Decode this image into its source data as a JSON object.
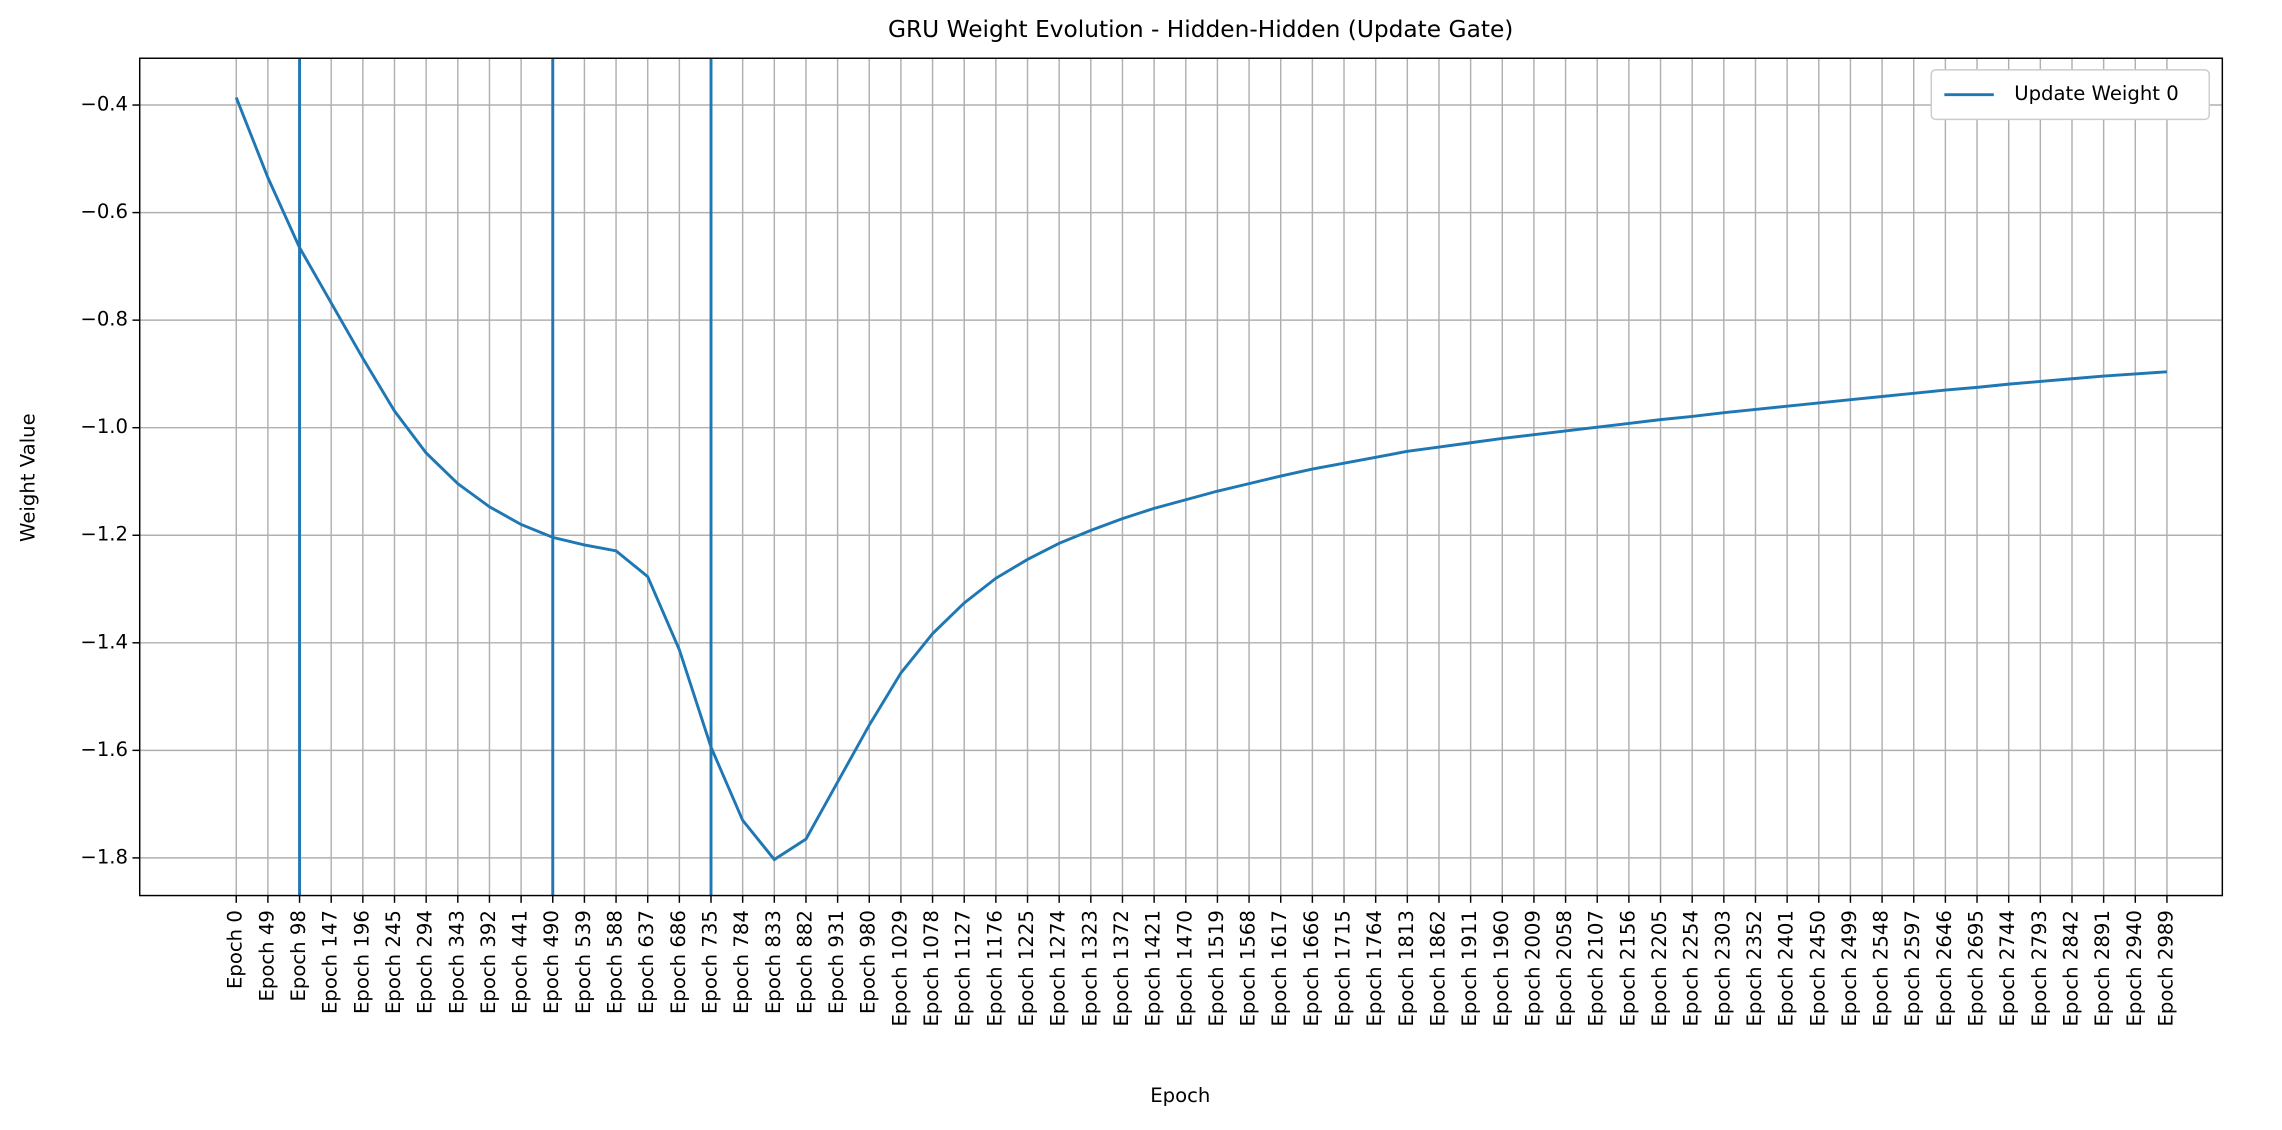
{
  "chart_data": {
    "type": "line",
    "title": "GRU Weight Evolution - Hidden-Hidden (Update Gate)",
    "x_label": "Epoch",
    "y_label": "Weight Value",
    "categories": [
      "Epoch 0",
      "Epoch 49",
      "Epoch 98",
      "Epoch 147",
      "Epoch 196",
      "Epoch 245",
      "Epoch 294",
      "Epoch 343",
      "Epoch 392",
      "Epoch 441",
      "Epoch 490",
      "Epoch 539",
      "Epoch 588",
      "Epoch 637",
      "Epoch 686",
      "Epoch 735",
      "Epoch 784",
      "Epoch 833",
      "Epoch 882",
      "Epoch 931",
      "Epoch 980",
      "Epoch 1029",
      "Epoch 1078",
      "Epoch 1127",
      "Epoch 1176",
      "Epoch 1225",
      "Epoch 1274",
      "Epoch 1323",
      "Epoch 1372",
      "Epoch 1421",
      "Epoch 1470",
      "Epoch 1519",
      "Epoch 1568",
      "Epoch 1617",
      "Epoch 1666",
      "Epoch 1715",
      "Epoch 1764",
      "Epoch 1813",
      "Epoch 1862",
      "Epoch 1911",
      "Epoch 1960",
      "Epoch 2009",
      "Epoch 2058",
      "Epoch 2107",
      "Epoch 2156",
      "Epoch 2205",
      "Epoch 2254",
      "Epoch 2303",
      "Epoch 2352",
      "Epoch 2401",
      "Epoch 2450",
      "Epoch 2499",
      "Epoch 2548",
      "Epoch 2597",
      "Epoch 2646",
      "Epoch 2695",
      "Epoch 2744",
      "Epoch 2793",
      "Epoch 2842",
      "Epoch 2891",
      "Epoch 2940",
      "Epoch 2989"
    ],
    "series": [
      {
        "name": "Update Weight 0",
        "color": "#1f77b4",
        "values": [
          -0.386,
          -0.535,
          -0.665,
          -0.768,
          -0.871,
          -0.969,
          -1.047,
          -1.104,
          -1.147,
          -1.18,
          -1.204,
          -1.218,
          -1.229,
          -1.277,
          -1.413,
          -1.594,
          -1.73,
          -1.803,
          -1.765,
          -1.659,
          -1.553,
          -1.456,
          -1.383,
          -1.326,
          -1.28,
          -1.245,
          -1.215,
          -1.191,
          -1.169,
          -1.15,
          -1.134,
          -1.118,
          -1.104,
          -1.09,
          -1.077,
          -1.066,
          -1.055,
          -1.044,
          -1.036,
          -1.028,
          -1.02,
          -1.013,
          -1.006,
          -0.999,
          -0.992,
          -0.985,
          -0.979,
          -0.972,
          -0.966,
          -0.96,
          -0.954,
          -0.948,
          -0.942,
          -0.936,
          -0.93,
          -0.925,
          -0.919,
          -0.914,
          -0.909,
          -0.904,
          -0.9,
          -0.896
        ]
      }
    ],
    "vlines": [
      2,
      10,
      15
    ],
    "vline_color": "#1f77b4",
    "xlim": [
      -3.05,
      62.75
    ],
    "ylim": [
      -1.87,
      -0.313
    ],
    "yticks": [
      {
        "value": -1.8,
        "label": "−1.8"
      },
      {
        "value": -1.6,
        "label": "−1.6"
      },
      {
        "value": -1.4,
        "label": "−1.4"
      },
      {
        "value": -1.2,
        "label": "−1.2"
      },
      {
        "value": -1.0,
        "label": "−1.0"
      },
      {
        "value": -0.8,
        "label": "−0.8"
      },
      {
        "value": -0.6,
        "label": "−0.6"
      },
      {
        "value": -0.4,
        "label": "−0.4"
      }
    ],
    "grid": true,
    "legend": "upper right"
  }
}
